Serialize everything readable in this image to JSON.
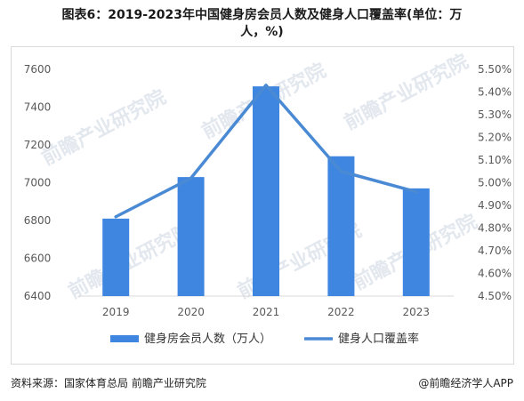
{
  "title_line1": "图表6：2019-2023年中国健身房会员人数及健身人口覆盖率(单位：万",
  "title_line2": "人，%)",
  "source": "资料来源：国家体育总局 前瞻产业研究院",
  "credit": "@前瞻经济学人APP",
  "watermark": "前瞻产业研究院",
  "colors": {
    "bar": "#3f86e0",
    "line": "#4a8ad4",
    "axis_text": "#595959",
    "grid": "#d9d9d9"
  },
  "chart_data": {
    "type": "bar",
    "categories": [
      "2019",
      "2020",
      "2021",
      "2022",
      "2023"
    ],
    "series": [
      {
        "name": "健身房会员人数（万人）",
        "type": "bar",
        "axis": "left",
        "values": [
          6810,
          7030,
          7510,
          7140,
          6970
        ]
      },
      {
        "name": "健身人口覆盖率",
        "type": "line",
        "axis": "right",
        "values": [
          4.85,
          5.02,
          5.43,
          5.05,
          4.96
        ]
      }
    ],
    "y_left": {
      "range": [
        6400,
        7600
      ],
      "ticks": [
        "6400",
        "6600",
        "6800",
        "7000",
        "7200",
        "7400",
        "7600"
      ]
    },
    "y_right": {
      "range": [
        4.5,
        5.5
      ],
      "ticks": [
        "4.50%",
        "4.60%",
        "4.70%",
        "4.80%",
        "4.90%",
        "5.00%",
        "5.10%",
        "5.20%",
        "5.30%",
        "5.40%",
        "5.50%"
      ]
    },
    "legend_position": "bottom",
    "grid": false
  }
}
